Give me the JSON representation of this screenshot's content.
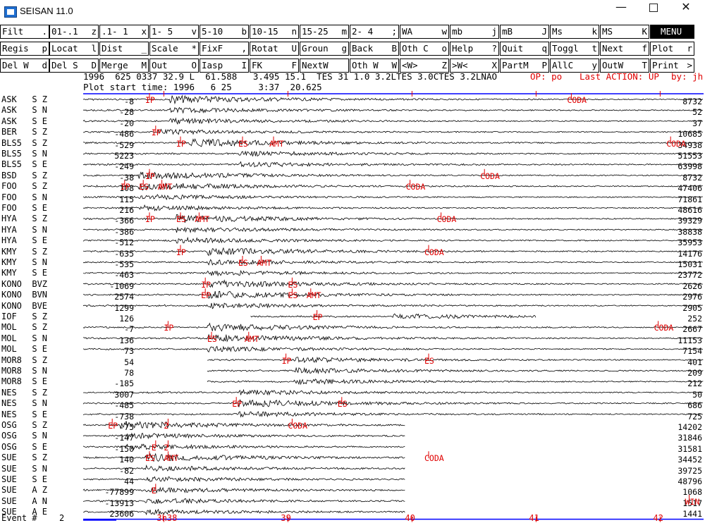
{
  "window": {
    "title": "SEISAN 11.0"
  },
  "toolbar": {
    "rows": [
      [
        {
          "label": "Filt",
          "key": "."
        },
        {
          "label": "01-.1",
          "key": "z"
        },
        {
          "label": ".1- 1",
          "key": "x"
        },
        {
          "label": "1- 5",
          "key": "v"
        },
        {
          "label": "5-10",
          "key": "b"
        },
        {
          "label": "10-15",
          "key": "n"
        },
        {
          "label": "15-25",
          "key": "m"
        },
        {
          "label": "2- 4",
          "key": ";"
        },
        {
          "label": "WA",
          "key": "w"
        },
        {
          "label": "mb",
          "key": "j"
        },
        {
          "label": "mB",
          "key": "J"
        },
        {
          "label": "Ms",
          "key": "k"
        },
        {
          "label": "MS",
          "key": "K"
        },
        {
          "label": "MENU",
          "key": ""
        }
      ],
      [
        {
          "label": "Regis",
          "key": "p"
        },
        {
          "label": "Locat",
          "key": "l"
        },
        {
          "label": "Dist",
          "key": "_"
        },
        {
          "label": "Scale",
          "key": "*"
        },
        {
          "label": "FixF",
          "key": ","
        },
        {
          "label": "Rotat",
          "key": "U"
        },
        {
          "label": "Groun",
          "key": "g"
        },
        {
          "label": "Back",
          "key": "B"
        },
        {
          "label": "Oth C",
          "key": "o"
        },
        {
          "label": "Help",
          "key": "?"
        },
        {
          "label": "Quit",
          "key": "q"
        },
        {
          "label": "Toggl",
          "key": "t"
        },
        {
          "label": "Next",
          "key": "f"
        },
        {
          "label": "Plot",
          "key": "r"
        }
      ],
      [
        {
          "label": "Del W",
          "key": "d"
        },
        {
          "label": "Del S",
          "key": "D"
        },
        {
          "label": "Merge",
          "key": "M"
        },
        {
          "label": "Out",
          "key": "O"
        },
        {
          "label": "Iasp",
          "key": "I"
        },
        {
          "label": "FK",
          "key": "F"
        },
        {
          "label": "NextW",
          "key": ""
        },
        {
          "label": "Oth W",
          "key": "W"
        },
        {
          "label": "<W>",
          "key": "Z"
        },
        {
          "label": ">W<",
          "key": "X"
        },
        {
          "label": "PartM",
          "key": "P"
        },
        {
          "label": "AllC",
          "key": "y"
        },
        {
          "label": "OutW",
          "key": "T"
        },
        {
          "label": "Print",
          "key": ">"
        }
      ]
    ]
  },
  "header": {
    "line1": "1996  625 0337 32.9 L  61.588   3.495 15.1  TES 31 1.0 3.2LTES 3.0CTES 3.2LNAO",
    "op": "OP: po",
    "last_action": "Last ACTION: UP",
    "by": "by: jh",
    "line2": "Plot start time: 1996   6 25     3:37  20.625"
  },
  "traces": [
    {
      "label": "ASK   S Z",
      "left": "-8",
      "right": "8732",
      "start": 0,
      "end": 1,
      "onset": 0.14,
      "amp": 3,
      "picks": [
        {
          "t": "IP",
          "x": 0.1
        },
        {
          "t": "CODA",
          "x": 0.78
        }
      ]
    },
    {
      "label": "ASK   S N",
      "left": "-28",
      "right": "52",
      "start": 0,
      "end": 1,
      "onset": 0.14,
      "amp": 2,
      "picks": []
    },
    {
      "label": "ASK   S E",
      "left": "-20",
      "right": "37",
      "start": 0,
      "end": 1,
      "onset": 0.14,
      "amp": 2,
      "picks": []
    },
    {
      "label": "BER   S Z",
      "left": "-486",
      "right": "10685",
      "start": 0,
      "end": 1,
      "onset": 0.12,
      "amp": 2,
      "picks": [
        {
          "t": "IP",
          "x": 0.11
        }
      ]
    },
    {
      "label": "BLS5  S Z",
      "left": "-529",
      "right": "34938",
      "start": 0,
      "end": 1,
      "onset": 0.17,
      "amp": 3,
      "picks": [
        {
          "t": "IP",
          "x": 0.15
        },
        {
          "t": "ES",
          "x": 0.25
        },
        {
          "t": "AMT",
          "x": 0.3
        },
        {
          "t": "CODA",
          "x": 0.94
        }
      ]
    },
    {
      "label": "BLS5  S N",
      "left": "5223",
      "right": "51553",
      "start": 0,
      "end": 1,
      "onset": 0.25,
      "amp": 2,
      "picks": []
    },
    {
      "label": "BLS5  S E",
      "left": "-249",
      "right": "63998",
      "start": 0,
      "end": 1,
      "onset": 0.25,
      "amp": 2,
      "picks": []
    },
    {
      "label": "BSD   S Z",
      "left": "-38",
      "right": "8732",
      "start": 0,
      "end": 1,
      "onset": 0.09,
      "amp": 3,
      "picks": [
        {
          "t": "IP",
          "x": 0.1
        },
        {
          "t": "CODA",
          "x": 0.64
        }
      ]
    },
    {
      "label": "FOO   S Z",
      "left": "108",
      "right": "47406",
      "start": 0,
      "end": 1,
      "onset": 0.09,
      "amp": 3,
      "picks": [
        {
          "t": "IP",
          "x": 0.06
        },
        {
          "t": "ES",
          "x": 0.09
        },
        {
          "t": "AMT",
          "x": 0.12
        },
        {
          "t": "CODA",
          "x": 0.52
        }
      ]
    },
    {
      "label": "FOO   S N",
      "left": "115",
      "right": "71861",
      "start": 0,
      "end": 1,
      "onset": 0.09,
      "amp": 2,
      "picks": []
    },
    {
      "label": "FOO   S E",
      "left": "216",
      "right": "48616",
      "start": 0,
      "end": 1,
      "onset": 0.09,
      "amp": 2,
      "picks": []
    },
    {
      "label": "HYA   S Z",
      "left": "-366",
      "right": "39329",
      "start": 0,
      "end": 1,
      "onset": 0.15,
      "amp": 3,
      "picks": [
        {
          "t": "IP",
          "x": 0.1
        },
        {
          "t": "ES",
          "x": 0.15
        },
        {
          "t": "AMT",
          "x": 0.18
        },
        {
          "t": "CODA",
          "x": 0.57
        }
      ]
    },
    {
      "label": "HYA   S N",
      "left": "-386",
      "right": "38838",
      "start": 0,
      "end": 1,
      "onset": 0.15,
      "amp": 2,
      "picks": []
    },
    {
      "label": "HYA   S E",
      "left": "-512",
      "right": "35953",
      "start": 0,
      "end": 1,
      "onset": 0.15,
      "amp": 2,
      "picks": []
    },
    {
      "label": "KMY   S Z",
      "left": "-635",
      "right": "14176",
      "start": 0,
      "end": 1,
      "onset": 0.2,
      "amp": 3,
      "picks": [
        {
          "t": "IP",
          "x": 0.15
        },
        {
          "t": "CODA",
          "x": 0.55
        }
      ]
    },
    {
      "label": "KMY   S N",
      "left": "-535",
      "right": "15031",
      "start": 0,
      "end": 1,
      "onset": 0.2,
      "amp": 2,
      "picks": [
        {
          "t": "ES",
          "x": 0.25
        },
        {
          "t": "AMT",
          "x": 0.28
        }
      ]
    },
    {
      "label": "KMY   S E",
      "left": "-463",
      "right": "23772",
      "start": 0,
      "end": 1,
      "onset": 0.2,
      "amp": 2,
      "picks": []
    },
    {
      "label": "KONO  BVZ",
      "left": "-1069",
      "right": "2626",
      "start": 0,
      "end": 1,
      "onset": 0.2,
      "amp": 3,
      "picks": [
        {
          "t": "IP",
          "x": 0.19
        },
        {
          "t": "ES",
          "x": 0.33
        }
      ]
    },
    {
      "label": "KONO  BVN",
      "left": "2574",
      "right": "2976",
      "start": 0,
      "end": 1,
      "onset": 0.2,
      "amp": 3,
      "picks": [
        {
          "t": "EP",
          "x": 0.19
        },
        {
          "t": "ES",
          "x": 0.33
        },
        {
          "t": "AMT",
          "x": 0.36
        }
      ]
    },
    {
      "label": "KONO  BVE",
      "left": "1299",
      "right": "2905",
      "start": 0,
      "end": 1,
      "onset": 0.2,
      "amp": 2,
      "picks": []
    },
    {
      "label": "IOF   S Z",
      "left": "126",
      "right": "252",
      "start": 0.27,
      "end": 0.73,
      "onset": 0.5,
      "amp": 2,
      "picks": [
        {
          "t": "EP",
          "x": 0.37
        }
      ]
    },
    {
      "label": "MOL   S Z",
      "left": "-7",
      "right": "2667",
      "start": 0,
      "end": 1,
      "onset": 0.2,
      "amp": 3,
      "picks": [
        {
          "t": "IP",
          "x": 0.13
        },
        {
          "t": "CODA",
          "x": 0.92
        }
      ]
    },
    {
      "label": "MOL   S N",
      "left": "136",
      "right": "11153",
      "start": 0,
      "end": 1,
      "onset": 0.2,
      "amp": 3,
      "picks": [
        {
          "t": "ES",
          "x": 0.2
        },
        {
          "t": "AMT",
          "x": 0.26
        }
      ]
    },
    {
      "label": "MOL   S E",
      "left": "73",
      "right": "7154",
      "start": 0,
      "end": 1,
      "onset": 0.2,
      "amp": 2,
      "picks": []
    },
    {
      "label": "MOR8  S Z",
      "left": "54",
      "right": "401",
      "start": 0.2,
      "end": 1,
      "onset": 0.34,
      "amp": 2,
      "picks": [
        {
          "t": "IP",
          "x": 0.32
        },
        {
          "t": "ES",
          "x": 0.55
        }
      ]
    },
    {
      "label": "MOR8  S N",
      "left": "78",
      "right": "209",
      "start": 0.2,
      "end": 1,
      "onset": 0.34,
      "amp": 2,
      "picks": []
    },
    {
      "label": "MOR8  S E",
      "left": "-185",
      "right": "212",
      "start": 0.2,
      "end": 1,
      "onset": 0.34,
      "amp": 2,
      "picks": []
    },
    {
      "label": "NES   S Z",
      "left": "3007",
      "right": "50",
      "start": 0,
      "end": 1,
      "onset": 0.25,
      "amp": 2,
      "picks": []
    },
    {
      "label": "NES   S N",
      "left": "-485",
      "right": "686",
      "start": 0,
      "end": 1,
      "onset": 0.25,
      "amp": 3,
      "picks": [
        {
          "t": "EP",
          "x": 0.24
        },
        {
          "t": "ES",
          "x": 0.41
        }
      ]
    },
    {
      "label": "NES   S E",
      "left": "-738",
      "right": "725",
      "start": 0,
      "end": 1,
      "onset": 0.25,
      "amp": 2,
      "picks": []
    },
    {
      "label": "OSG   S Z",
      "left": "-75",
      "right": "14202",
      "start": 0,
      "end": 0.52,
      "onset": 0.06,
      "amp": 3,
      "picks": [
        {
          "t": "EP",
          "x": 0.04
        },
        {
          "t": "2",
          "x": 0.13
        },
        {
          "t": "CODA",
          "x": 0.33
        }
      ]
    },
    {
      "label": "OSG   S N",
      "left": "-147",
      "right": "31846",
      "start": 0,
      "end": 0.52,
      "onset": 0.07,
      "amp": 2,
      "picks": []
    },
    {
      "label": "OSG   S E",
      "left": "-150",
      "right": "31581",
      "start": 0,
      "end": 0.52,
      "onset": 0.07,
      "amp": 2,
      "picks": [
        {
          "t": "E",
          "x": 0.11
        },
        {
          "t": "2",
          "x": 0.13
        }
      ]
    },
    {
      "label": "SUE   S Z",
      "left": "140",
      "right": "34452",
      "start": 0,
      "end": 0.52,
      "onset": 0.1,
      "amp": 3,
      "picks": [
        {
          "t": "ES",
          "x": 0.1
        },
        {
          "t": "AMT",
          "x": 0.13
        },
        {
          "t": "CODA",
          "x": 0.55
        }
      ]
    },
    {
      "label": "SUE   S N",
      "left": "-82",
      "right": "39725",
      "start": 0,
      "end": 0.52,
      "onset": 0.1,
      "amp": 2,
      "picks": []
    },
    {
      "label": "SUE   S E",
      "left": "44",
      "right": "48796",
      "start": 0,
      "end": 0.52,
      "onset": 0.1,
      "amp": 2,
      "picks": []
    },
    {
      "label": "SUE   A Z",
      "left": "-77899",
      "right": "1068",
      "start": 0,
      "end": 0.52,
      "onset": 0.1,
      "amp": 2,
      "picks": [
        {
          "t": "E",
          "x": 0.11
        }
      ]
    },
    {
      "label": "SUE   A N",
      "left": "-13913",
      "right": "1517",
      "start": 0,
      "end": 0.52,
      "onset": 0.1,
      "amp": 2,
      "picks": [
        {
          "t": "WIN",
          "x": 0.97
        }
      ]
    },
    {
      "label": "SUE   A E",
      "left": "23606",
      "right": "1441",
      "start": 0,
      "end": 0.52,
      "onset": 0.1,
      "amp": 2,
      "picks": []
    }
  ],
  "footer": {
    "event_label": "Event #",
    "event_number": "2",
    "ticks": [
      {
        "label": "3h38",
        "x": 0.13
      },
      {
        "label": "39",
        "x": 0.33
      },
      {
        "label": "40",
        "x": 0.53
      },
      {
        "label": "41",
        "x": 0.73
      },
      {
        "label": "42",
        "x": 0.93
      }
    ]
  },
  "colors": {
    "trace": "#000000",
    "pick": "#e00000",
    "axis": "#0000ff",
    "menu_bg": "#000000"
  }
}
